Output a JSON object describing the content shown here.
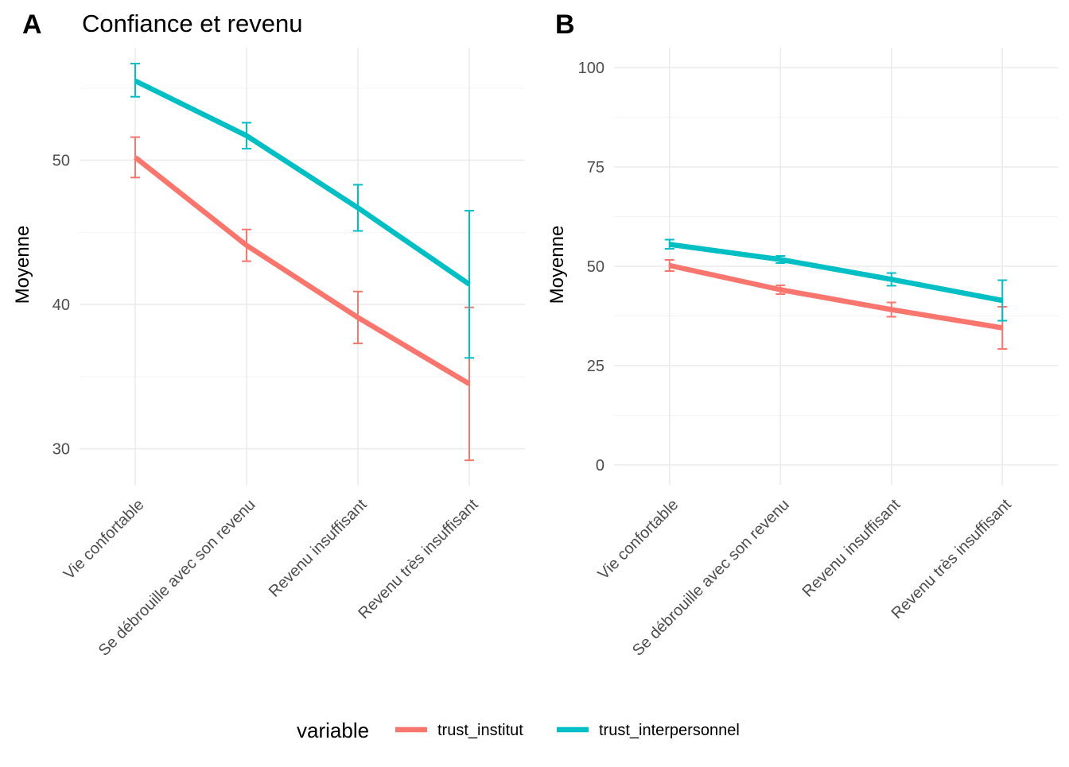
{
  "legend": {
    "title": "variable",
    "items": [
      {
        "label": "trust_institut",
        "color": "#F8766D"
      },
      {
        "label": "trust_interpersonnel",
        "color": "#00BFC4"
      }
    ]
  },
  "chart_data": [
    {
      "type": "line",
      "tag": "A",
      "title": "Confiance et revenu",
      "xlabel": "",
      "ylabel": "Moyenne",
      "ylim": [
        27.5,
        57.8
      ],
      "yticks": [
        30,
        40,
        50
      ],
      "grid": true,
      "categories": [
        "Vie confortable",
        "Se débrouille avec son revenu",
        "Revenu insuffisant",
        "Revenu très insuffisant"
      ],
      "series": [
        {
          "name": "trust_institut",
          "color": "#F8766D",
          "values": [
            50.2,
            44.1,
            39.1,
            34.5
          ],
          "lower": [
            48.8,
            43.0,
            37.3,
            29.2
          ],
          "upper": [
            51.6,
            45.2,
            40.9,
            39.8
          ]
        },
        {
          "name": "trust_interpersonnel",
          "color": "#00BFC4",
          "values": [
            55.5,
            51.7,
            46.7,
            41.4
          ],
          "lower": [
            54.4,
            50.8,
            45.1,
            36.3
          ],
          "upper": [
            56.7,
            52.6,
            48.3,
            46.5
          ]
        }
      ]
    },
    {
      "type": "line",
      "tag": "B",
      "title": "",
      "xlabel": "",
      "ylabel": "Moyenne",
      "ylim": [
        -5,
        105
      ],
      "yticks": [
        0,
        25,
        50,
        75,
        100
      ],
      "grid": true,
      "categories": [
        "Vie confortable",
        "Se débrouille avec son revenu",
        "Revenu insuffisant",
        "Revenu très insuffisant"
      ],
      "series": [
        {
          "name": "trust_institut",
          "color": "#F8766D",
          "values": [
            50.2,
            44.1,
            39.1,
            34.5
          ],
          "lower": [
            48.8,
            43.0,
            37.3,
            29.2
          ],
          "upper": [
            51.6,
            45.2,
            40.9,
            39.8
          ]
        },
        {
          "name": "trust_interpersonnel",
          "color": "#00BFC4",
          "values": [
            55.5,
            51.7,
            46.7,
            41.4
          ],
          "lower": [
            54.4,
            50.8,
            45.1,
            36.3
          ],
          "upper": [
            56.7,
            52.6,
            48.3,
            46.5
          ]
        }
      ]
    }
  ]
}
